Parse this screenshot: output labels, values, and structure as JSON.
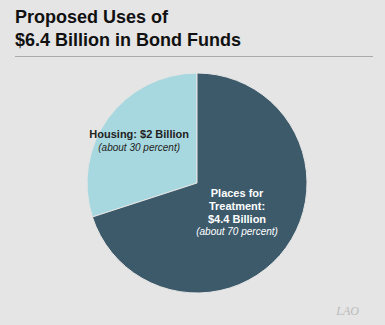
{
  "chart_data": {
    "type": "pie",
    "title": "Proposed Uses of\n$6.4 Billion in Bond Funds",
    "categories": [
      "Housing: $2 Billion",
      "Places for\nTreatment:\n$4.4 Billion"
    ],
    "values": [
      30,
      70
    ],
    "value_labels": [
      "(about 30 percent)",
      "(about 70 percent)"
    ],
    "colors": [
      "#a8d8df",
      "#3d5a6b"
    ],
    "annotations": [
      "LAO"
    ],
    "data_labels": true
  }
}
